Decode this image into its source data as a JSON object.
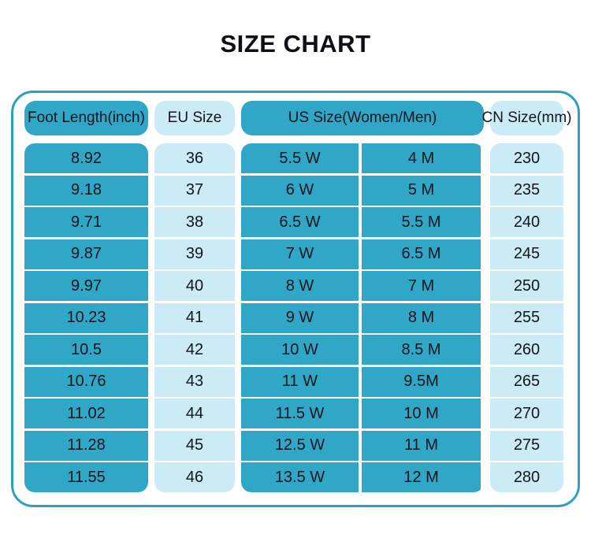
{
  "page": {
    "title": "SIZE CHART"
  },
  "colors": {
    "dark_cell": "#30A7C7",
    "light_cell": "#CBEBF6",
    "panel_border": "#2F9FC0",
    "text": "#14141C",
    "background": "#FFFFFF"
  },
  "chart_data": {
    "type": "table",
    "title": "SIZE CHART",
    "columns": [
      "Foot Length(inch)",
      "EU Size",
      "US Size(Women/Men)",
      "CN Size(mm)"
    ],
    "rows": [
      {
        "foot": "8.92",
        "eu": "36",
        "us_w": "5.5 W",
        "us_m": "4 M",
        "cn": "230"
      },
      {
        "foot": "9.18",
        "eu": "37",
        "us_w": "6 W",
        "us_m": "5 M",
        "cn": "235"
      },
      {
        "foot": "9.71",
        "eu": "38",
        "us_w": "6.5 W",
        "us_m": "5.5 M",
        "cn": "240"
      },
      {
        "foot": "9.87",
        "eu": "39",
        "us_w": "7 W",
        "us_m": "6.5 M",
        "cn": "245"
      },
      {
        "foot": "9.97",
        "eu": "40",
        "us_w": "8 W",
        "us_m": "7 M",
        "cn": "250"
      },
      {
        "foot": "10.23",
        "eu": "41",
        "us_w": "9 W",
        "us_m": "8 M",
        "cn": "255"
      },
      {
        "foot": "10.5",
        "eu": "42",
        "us_w": "10 W",
        "us_m": "8.5 M",
        "cn": "260"
      },
      {
        "foot": "10.76",
        "eu": "43",
        "us_w": "11 W",
        "us_m": "9.5M",
        "cn": "265"
      },
      {
        "foot": "11.02",
        "eu": "44",
        "us_w": "11.5 W",
        "us_m": "10 M",
        "cn": "270"
      },
      {
        "foot": "11.28",
        "eu": "45",
        "us_w": "12.5 W",
        "us_m": "11 M",
        "cn": "275"
      },
      {
        "foot": "11.55",
        "eu": "46",
        "us_w": "13.5 W",
        "us_m": "12 M",
        "cn": "280"
      }
    ]
  }
}
